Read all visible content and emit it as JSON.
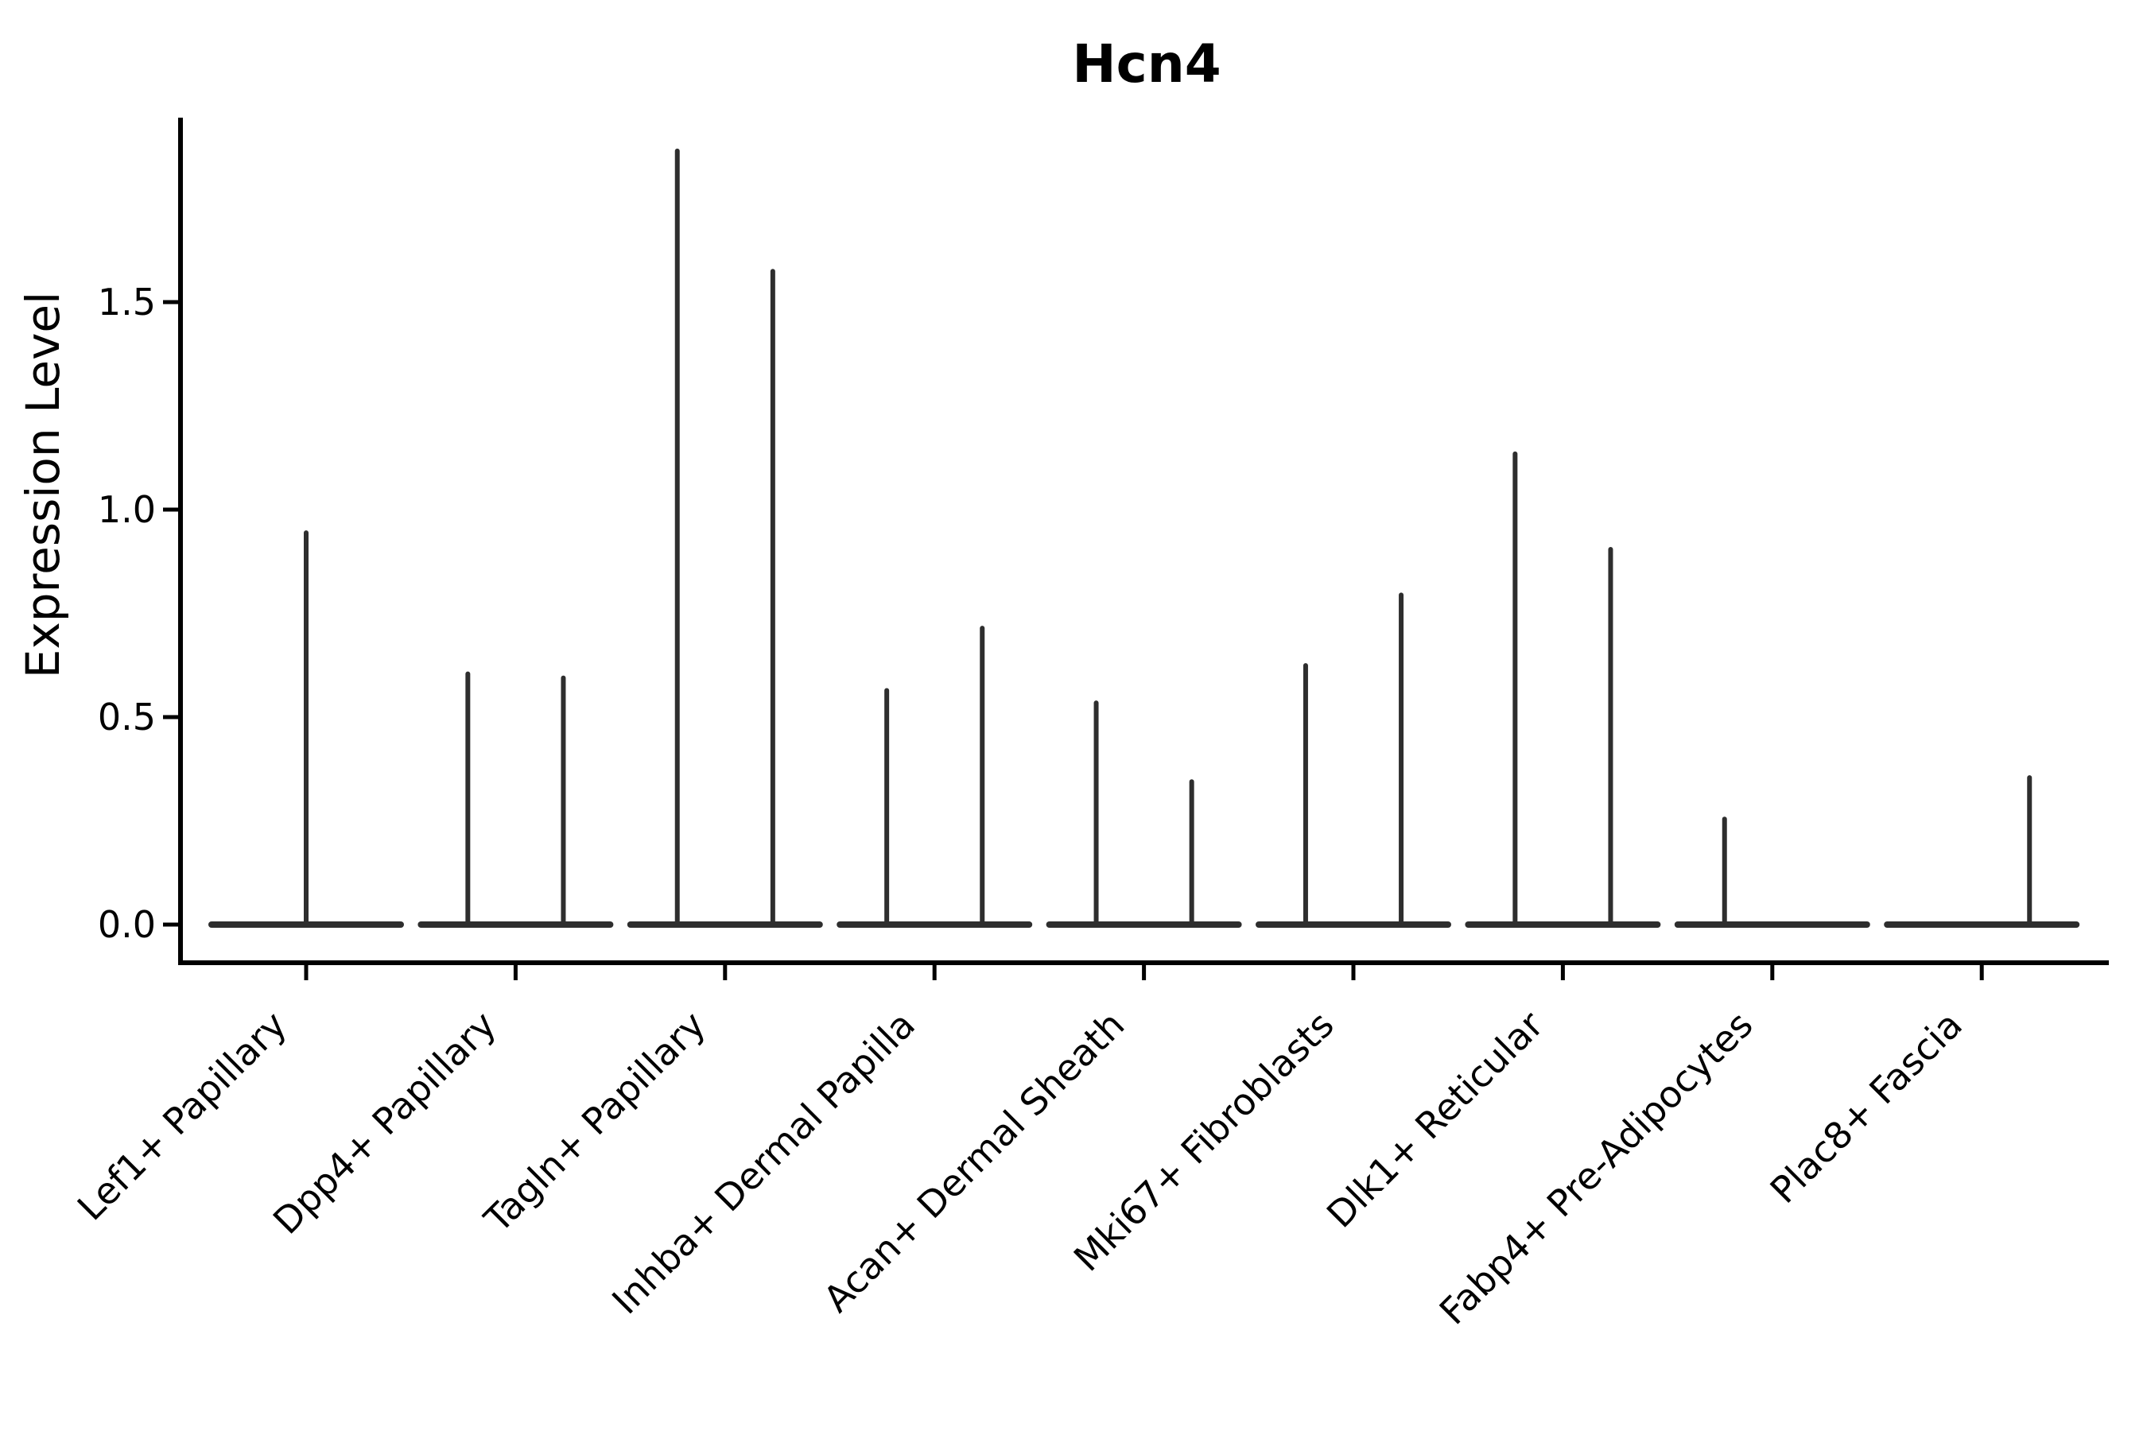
{
  "figure": {
    "title": "Hcn4",
    "ylabel": "Expression Level"
  },
  "colors": {
    "background": "#ffffff",
    "violin": "#2e2e2e",
    "axis": "#000000",
    "text": "#000000"
  },
  "chart_data": {
    "type": "violin",
    "title": "Hcn4",
    "xlabel": "",
    "ylabel": "Expression Level",
    "ylim": [
      -0.09,
      1.94
    ],
    "yticks": [
      "0.0",
      "0.5",
      "1.0",
      "1.5"
    ],
    "grid": false,
    "legend": "none",
    "orientation": "vertical",
    "note": "Each violin is a flat density bar at 0 with a thin tail (spike) rising to the group maximum; offset is the spike position as a fraction of category spacing",
    "categories": [
      "Lef1+ Papillary",
      "Dpp4+ Papillary",
      "Tagln+ Papillary",
      "Inhba+ Dermal Papilla",
      "Acan+ Dermal Sheath",
      "Mki67+ Fibroblasts",
      "Dlk1+ Reticular",
      "Fabp4+ Pre-Adipocytes",
      "Plac8+ Fascia"
    ],
    "baseline_value": 0.0,
    "violins": [
      {
        "category": "Lef1+ Papillary",
        "spikes": [
          {
            "offset": 0.0,
            "max": 0.95
          }
        ]
      },
      {
        "category": "Dpp4+ Papillary",
        "spikes": [
          {
            "offset": -0.228,
            "max": 0.61
          },
          {
            "offset": 0.228,
            "max": 0.6
          }
        ]
      },
      {
        "category": "Tagln+ Papillary",
        "spikes": [
          {
            "offset": -0.228,
            "max": 1.87
          },
          {
            "offset": 0.228,
            "max": 1.58
          }
        ]
      },
      {
        "category": "Inhba+ Dermal Papilla",
        "spikes": [
          {
            "offset": -0.228,
            "max": 0.57
          },
          {
            "offset": 0.228,
            "max": 0.72
          }
        ]
      },
      {
        "category": "Acan+ Dermal Sheath",
        "spikes": [
          {
            "offset": -0.228,
            "max": 0.54
          },
          {
            "offset": 0.228,
            "max": 0.35
          }
        ]
      },
      {
        "category": "Mki67+ Fibroblasts",
        "spikes": [
          {
            "offset": -0.228,
            "max": 0.63
          },
          {
            "offset": 0.228,
            "max": 0.8
          }
        ]
      },
      {
        "category": "Dlk1+ Reticular",
        "spikes": [
          {
            "offset": -0.228,
            "max": 1.14
          },
          {
            "offset": 0.228,
            "max": 0.91
          }
        ]
      },
      {
        "category": "Fabp4+ Pre-Adipocytes",
        "spikes": [
          {
            "offset": -0.228,
            "max": 0.26
          }
        ]
      },
      {
        "category": "Plac8+ Fascia",
        "spikes": [
          {
            "offset": 0.228,
            "max": 0.36
          }
        ]
      }
    ]
  }
}
